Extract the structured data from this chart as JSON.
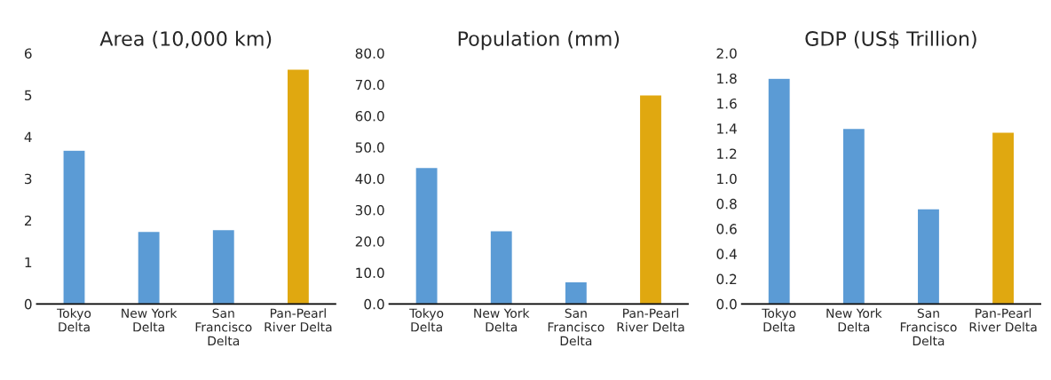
{
  "chart_data": [
    {
      "type": "bar",
      "title": "Area (10,000 km)",
      "categories": [
        "Tokyo\nDelta",
        "New York\nDelta",
        "San\nFrancisco\nDelta",
        "Pan-Pearl\nRiver Delta"
      ],
      "values": [
        3.68,
        1.74,
        1.78,
        5.62
      ],
      "colors": [
        "#5b9bd5",
        "#5b9bd5",
        "#5b9bd5",
        "#e0a810"
      ],
      "ylim": [
        0,
        6
      ],
      "yticks": [
        0,
        1,
        2,
        3,
        4,
        5,
        6
      ],
      "grid": false
    },
    {
      "type": "bar",
      "title": "Population (mm)",
      "categories": [
        "Tokyo\nDelta",
        "New York\nDelta",
        "San\nFrancisco\nDelta",
        "Pan-Pearl\nRiver Delta"
      ],
      "values": [
        43.6,
        23.4,
        7.1,
        66.7
      ],
      "colors": [
        "#5b9bd5",
        "#5b9bd5",
        "#5b9bd5",
        "#e0a810"
      ],
      "ylim": [
        0,
        80
      ],
      "yticks": [
        {
          "value": 0,
          "label": "0.0"
        },
        {
          "value": 10,
          "label": "10.0"
        },
        {
          "value": 20,
          "label": "20.0"
        },
        {
          "value": 30,
          "label": "30.0"
        },
        {
          "value": 40,
          "label": "40.0"
        },
        {
          "value": 50,
          "label": "50.0"
        },
        {
          "value": 60,
          "label": "60.0"
        },
        {
          "value": 70,
          "label": "70.0"
        },
        {
          "value": 80,
          "label": "80.0"
        }
      ],
      "grid": false
    },
    {
      "type": "bar",
      "title": "GDP (US$ Trillion)",
      "categories": [
        "Tokyo\nDelta",
        "New York\nDelta",
        "San\nFrancisco\nDelta",
        "Pan-Pearl\nRiver Delta"
      ],
      "values": [
        1.8,
        1.4,
        0.76,
        1.37
      ],
      "colors": [
        "#5b9bd5",
        "#5b9bd5",
        "#5b9bd5",
        "#e0a810"
      ],
      "ylim": [
        0,
        2
      ],
      "yticks": [
        {
          "value": 0,
          "label": "0.0"
        },
        {
          "value": 0.2,
          "label": "0.2"
        },
        {
          "value": 0.4,
          "label": "0.4"
        },
        {
          "value": 0.6,
          "label": "0.6"
        },
        {
          "value": 0.8,
          "label": "0.8"
        },
        {
          "value": 1.0,
          "label": "1.0"
        },
        {
          "value": 1.2,
          "label": "1.2"
        },
        {
          "value": 1.4,
          "label": "1.4"
        },
        {
          "value": 1.6,
          "label": "1.6"
        },
        {
          "value": 1.8,
          "label": "1.8"
        },
        {
          "value": 2.0,
          "label": "2.0"
        }
      ],
      "grid": false
    }
  ]
}
